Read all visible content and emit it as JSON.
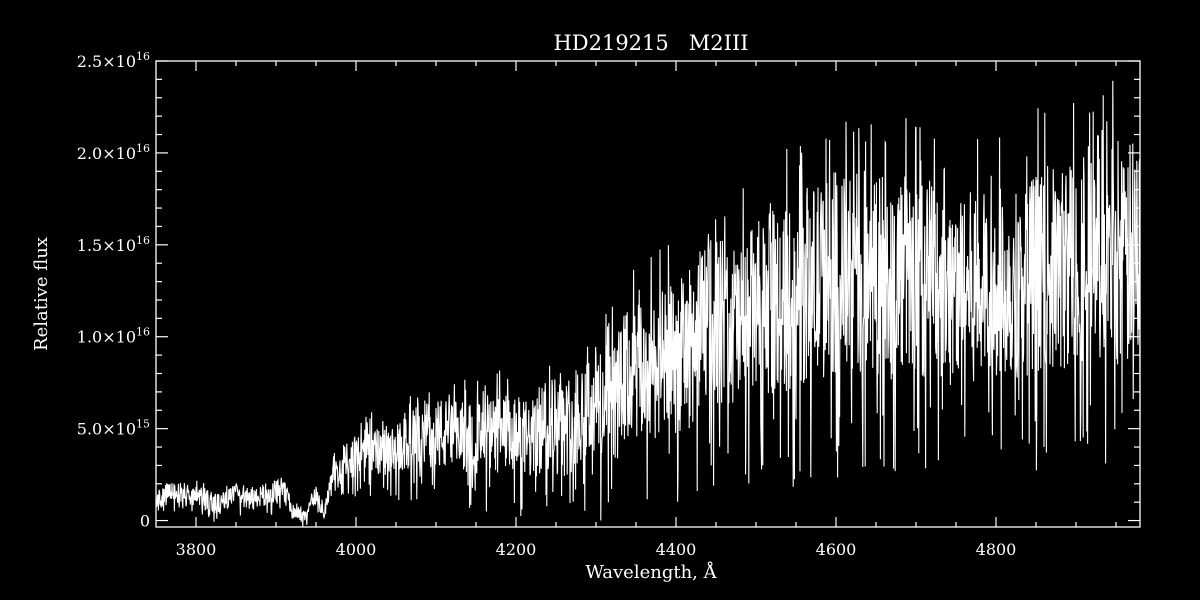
{
  "chart_data": {
    "type": "line",
    "title": "HD219215   M2III",
    "xlabel": "Wavelength, Å",
    "ylabel": "Relative flux",
    "xlim": [
      3750,
      4980
    ],
    "ylim": [
      -350000000000000.0,
      2.5e+16
    ],
    "grid": false,
    "legend": "none",
    "x_ticks": [
      {
        "value": 3800,
        "label": "3800"
      },
      {
        "value": 4000,
        "label": "4000"
      },
      {
        "value": 4200,
        "label": "4200"
      },
      {
        "value": 4400,
        "label": "4400"
      },
      {
        "value": 4600,
        "label": "4600"
      },
      {
        "value": 4800,
        "label": "4800"
      }
    ],
    "y_ticks": [
      {
        "value": 0,
        "mantissa": "0",
        "exponent": ""
      },
      {
        "value": 5000000000000000.0,
        "mantissa": "5.0×10",
        "exponent": "15"
      },
      {
        "value": 1e+16,
        "mantissa": "1.0×10",
        "exponent": "16"
      },
      {
        "value": 1.5e+16,
        "mantissa": "1.5×10",
        "exponent": "16"
      },
      {
        "value": 2e+16,
        "mantissa": "2.0×10",
        "exponent": "16"
      },
      {
        "value": 2.5e+16,
        "mantissa": "2.5×10",
        "exponent": "16"
      }
    ],
    "series": [
      {
        "color": "#ffffff",
        "x": [
          3750,
          3770,
          3790,
          3810,
          3830,
          3850,
          3870,
          3890,
          3910,
          3920,
          3935,
          3950,
          3960,
          3970,
          3985,
          4000,
          4020,
          4040,
          4060,
          4080,
          4100,
          4120,
          4140,
          4160,
          4180,
          4200,
          4220,
          4240,
          4260,
          4280,
          4300,
          4320,
          4340,
          4360,
          4380,
          4400,
          4420,
          4440,
          4460,
          4480,
          4500,
          4520,
          4540,
          4560,
          4580,
          4600,
          4620,
          4640,
          4660,
          4680,
          4700,
          4720,
          4740,
          4760,
          4780,
          4800,
          4820,
          4840,
          4860,
          4880,
          4900,
          4920,
          4940,
          4960,
          4980
        ],
        "y": [
          1000000000000000.0,
          1600000000000000.0,
          1300000000000000.0,
          1200000000000000.0,
          900000000000000.0,
          1400000000000000.0,
          1100000000000000.0,
          1500000000000000.0,
          1600000000000000.0,
          600000000000000.0,
          100000000000000.0,
          1400000000000000.0,
          300000000000000.0,
          2200000000000000.0,
          3000000000000000.0,
          3600000000000000.0,
          3900000000000000.0,
          3500000000000000.0,
          4100000000000000.0,
          4700000000000000.0,
          4800000000000000.0,
          4500000000000000.0,
          4600000000000000.0,
          4400000000000000.0,
          4700000000000000.0,
          4600000000000000.0,
          4300000000000000.0,
          5500000000000000.0,
          4900000000000000.0,
          6000000000000000.0,
          6500000000000000.0,
          6200000000000000.0,
          7800000000000000.0,
          8000000000000000.0,
          8500000000000000.0,
          8800000000000000.0,
          9500000000000000.0,
          1.12e+16,
          1.08e+16,
          1.05e+16,
          1.15e+16,
          1.18e+16,
          1.2e+16,
          1.28e+16,
          1.3e+16,
          1.35e+16,
          1.32e+16,
          1.38e+16,
          1.28e+16,
          1.36e+16,
          1.3e+16,
          1.34e+16,
          1.25e+16,
          1.28e+16,
          1.26e+16,
          1.3e+16,
          1.28e+16,
          1.33e+16,
          1.38e+16,
          1.35e+16,
          1.45e+16,
          1.48e+16,
          1.55e+16,
          1.35e+16,
          1.6e+16
        ],
        "noise_amplitude": [
          600000000000000.0,
          600000000000000.0,
          600000000000000.0,
          600000000000000.0,
          600000000000000.0,
          600000000000000.0,
          600000000000000.0,
          600000000000000.0,
          700000000000000.0,
          500000000000000.0,
          300000000000000.0,
          500000000000000.0,
          300000000000000.0,
          800000000000000.0,
          1000000000000000.0,
          1200000000000000.0,
          1300000000000000.0,
          1300000000000000.0,
          1500000000000000.0,
          1800000000000000.0,
          2000000000000000.0,
          2000000000000000.0,
          2000000000000000.0,
          2000000000000000.0,
          2200000000000000.0,
          2200000000000000.0,
          2200000000000000.0,
          2800000000000000.0,
          2600000000000000.0,
          3000000000000000.0,
          3200000000000000.0,
          3400000000000000.0,
          3800000000000000.0,
          3800000000000000.0,
          4000000000000000.0,
          4200000000000000.0,
          4400000000000000.0,
          4600000000000000.0,
          4600000000000000.0,
          4600000000000000.0,
          4800000000000000.0,
          5000000000000000.0,
          5200000000000000.0,
          5400000000000000.0,
          5400000000000000.0,
          5600000000000000.0,
          5600000000000000.0,
          5600000000000000.0,
          5400000000000000.0,
          5600000000000000.0,
          5400000000000000.0,
          5400000000000000.0,
          5200000000000000.0,
          5200000000000000.0,
          5200000000000000.0,
          5200000000000000.0,
          5200000000000000.0,
          5400000000000000.0,
          5600000000000000.0,
          5600000000000000.0,
          6000000000000000.0,
          6200000000000000.0,
          6600000000000000.0,
          6000000000000000.0,
          6400000000000000.0
        ]
      }
    ]
  }
}
